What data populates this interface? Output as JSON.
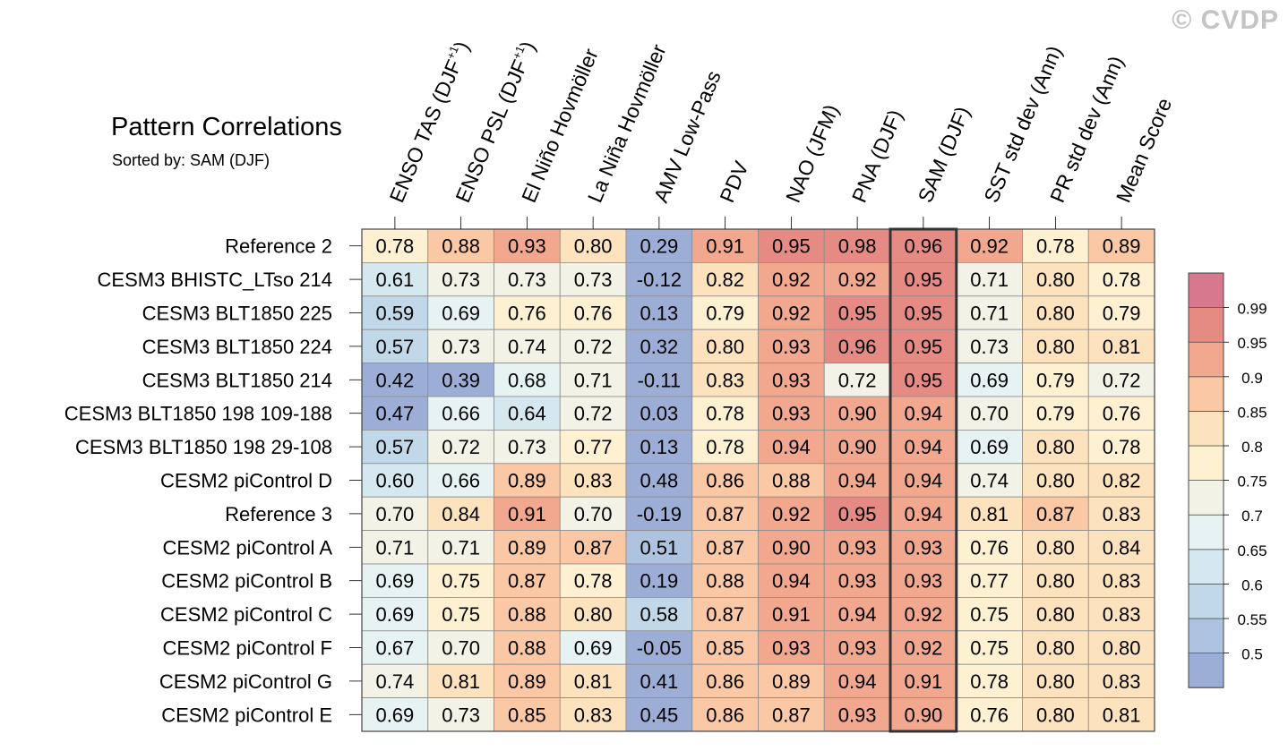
{
  "watermark": "© CVDP",
  "title": "Pattern Correlations",
  "subtitle": "Sorted by: SAM (DJF)",
  "chart_data": {
    "type": "heatmap",
    "title": "Pattern Correlations",
    "subtitle": "Sorted by: SAM (DJF)",
    "sorted_by": "SAM (DJF)",
    "columns": [
      {
        "label": "ENSO TAS (DJF",
        "sup": "+1",
        "close": ")"
      },
      {
        "label": "ENSO PSL (DJF",
        "sup": "+1",
        "close": ")"
      },
      {
        "label": "El Niño Hovmöller"
      },
      {
        "label": "La Niña Hovmöller"
      },
      {
        "label": "AMV Low-Pass"
      },
      {
        "label": "PDV"
      },
      {
        "label": "NAO (JFM)"
      },
      {
        "label": "PNA (DJF)"
      },
      {
        "label": "SAM (DJF)"
      },
      {
        "label": "SST std dev (Ann)"
      },
      {
        "label": "PR std dev (Ann)"
      },
      {
        "label": "Mean Score"
      }
    ],
    "rows": [
      {
        "name": "Reference 2",
        "values": [
          "0.78",
          "0.88",
          "0.93",
          "0.80",
          "0.29",
          "0.91",
          "0.95",
          "0.98",
          "0.96",
          "0.92",
          "0.78",
          "0.89"
        ]
      },
      {
        "name": "CESM3 BHISTC_LTso 214",
        "values": [
          "0.61",
          "0.73",
          "0.73",
          "0.73",
          "-0.12",
          "0.82",
          "0.92",
          "0.92",
          "0.95",
          "0.71",
          "0.80",
          "0.78"
        ]
      },
      {
        "name": "CESM3 BLT1850 225",
        "values": [
          "0.59",
          "0.69",
          "0.76",
          "0.76",
          "0.13",
          "0.79",
          "0.92",
          "0.95",
          "0.95",
          "0.71",
          "0.80",
          "0.79"
        ]
      },
      {
        "name": "CESM3 BLT1850 224",
        "values": [
          "0.57",
          "0.73",
          "0.74",
          "0.72",
          "0.32",
          "0.80",
          "0.93",
          "0.96",
          "0.95",
          "0.73",
          "0.80",
          "0.81"
        ]
      },
      {
        "name": "CESM3 BLT1850 214",
        "values": [
          "0.42",
          "0.39",
          "0.68",
          "0.71",
          "-0.11",
          "0.83",
          "0.93",
          "0.72",
          "0.95",
          "0.69",
          "0.79",
          "0.72"
        ]
      },
      {
        "name": "CESM3 BLT1850 198 109-188",
        "values": [
          "0.47",
          "0.66",
          "0.64",
          "0.72",
          "0.03",
          "0.78",
          "0.93",
          "0.90",
          "0.94",
          "0.70",
          "0.79",
          "0.76"
        ]
      },
      {
        "name": "CESM3 BLT1850 198 29-108",
        "values": [
          "0.57",
          "0.72",
          "0.73",
          "0.77",
          "0.13",
          "0.78",
          "0.94",
          "0.90",
          "0.94",
          "0.69",
          "0.80",
          "0.78"
        ]
      },
      {
        "name": "CESM2 piControl D",
        "values": [
          "0.60",
          "0.66",
          "0.89",
          "0.83",
          "0.48",
          "0.86",
          "0.88",
          "0.94",
          "0.94",
          "0.74",
          "0.80",
          "0.82"
        ]
      },
      {
        "name": "Reference 3",
        "values": [
          "0.70",
          "0.84",
          "0.91",
          "0.70",
          "-0.19",
          "0.87",
          "0.92",
          "0.95",
          "0.94",
          "0.81",
          "0.87",
          "0.83"
        ]
      },
      {
        "name": "CESM2 piControl A",
        "values": [
          "0.71",
          "0.71",
          "0.89",
          "0.87",
          "0.51",
          "0.87",
          "0.90",
          "0.93",
          "0.93",
          "0.76",
          "0.80",
          "0.84"
        ]
      },
      {
        "name": "CESM2 piControl B",
        "values": [
          "0.69",
          "0.75",
          "0.87",
          "0.78",
          "0.19",
          "0.88",
          "0.94",
          "0.93",
          "0.93",
          "0.77",
          "0.80",
          "0.83"
        ]
      },
      {
        "name": "CESM2 piControl C",
        "values": [
          "0.69",
          "0.75",
          "0.88",
          "0.80",
          "0.58",
          "0.87",
          "0.91",
          "0.94",
          "0.92",
          "0.75",
          "0.80",
          "0.83"
        ]
      },
      {
        "name": "CESM2 piControl F",
        "values": [
          "0.67",
          "0.70",
          "0.88",
          "0.69",
          "-0.05",
          "0.85",
          "0.93",
          "0.93",
          "0.92",
          "0.75",
          "0.80",
          "0.80"
        ]
      },
      {
        "name": "CESM2 piControl G",
        "values": [
          "0.74",
          "0.81",
          "0.89",
          "0.81",
          "0.41",
          "0.86",
          "0.89",
          "0.94",
          "0.91",
          "0.78",
          "0.80",
          "0.83"
        ]
      },
      {
        "name": "CESM2 piControl E",
        "values": [
          "0.69",
          "0.73",
          "0.85",
          "0.83",
          "0.45",
          "0.86",
          "0.87",
          "0.93",
          "0.90",
          "0.76",
          "0.80",
          "0.81"
        ]
      }
    ],
    "colorbar": {
      "levels": [
        "0.5",
        "0.55",
        "0.6",
        "0.65",
        "0.7",
        "0.75",
        "0.8",
        "0.85",
        "0.9",
        "0.95",
        "0.99"
      ],
      "colors": [
        "#9daed6",
        "#adc3e0",
        "#c1d8e9",
        "#d6e8ef",
        "#e7f2f3",
        "#f3f2e6",
        "#fdf1d1",
        "#fde3bd",
        "#fac8a4",
        "#f1a88e",
        "#e68b84",
        "#d7788e"
      ]
    },
    "highlighted_column": "SAM (DJF)"
  }
}
